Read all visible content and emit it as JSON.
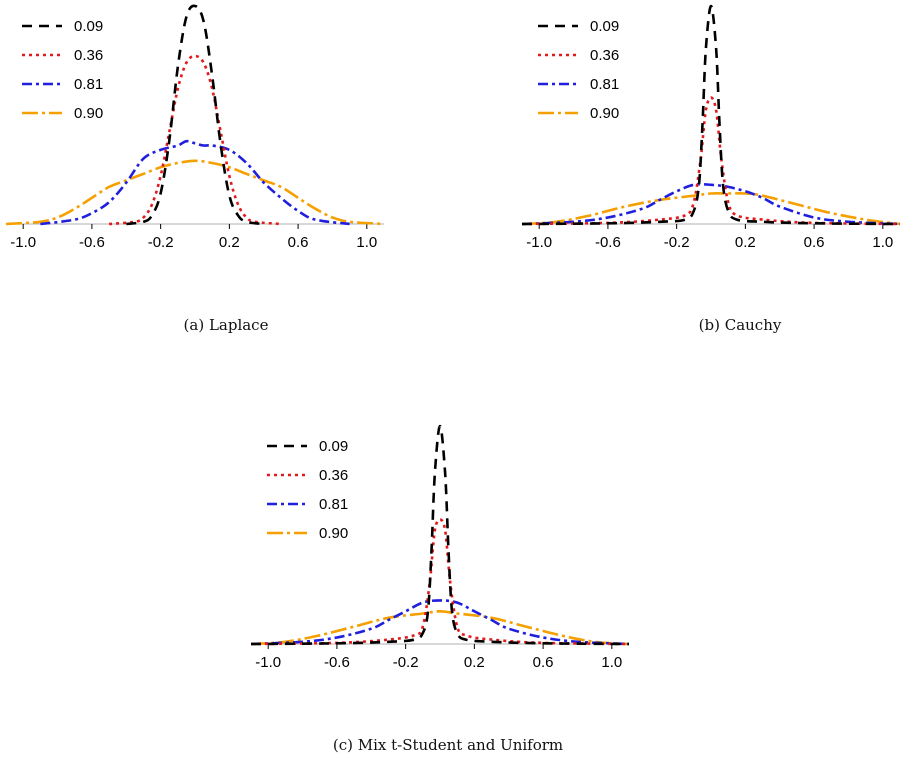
{
  "colors": {
    "black": "#000000",
    "red": "#e31a1c",
    "blue": "#1f1fdd",
    "orange": "#f5a000",
    "axis": "#b0b0b0"
  },
  "captions": {
    "a": "(a) Laplace",
    "b": "(b) Cauchy",
    "c": "(c) Mix t-Student and Uniform"
  },
  "chart_data": [
    {
      "type": "line",
      "caption": "(a) Laplace",
      "xlim": [
        -1.1,
        1.1
      ],
      "ylim": [
        0,
        1
      ],
      "x_ticks": [
        -1.0,
        -0.6,
        -0.2,
        0.2,
        0.6,
        1.0
      ],
      "x_tick_labels": [
        "-1.0",
        "-0.6",
        "-0.2",
        "0.2",
        "0.6",
        "1.0"
      ],
      "legend_position": "top-left",
      "series": [
        {
          "name": "0.09",
          "color": "#000000",
          "dash": "10,7",
          "x": [
            -0.4,
            -0.3,
            -0.25,
            -0.2,
            -0.15,
            -0.1,
            -0.05,
            0.0,
            0.05,
            0.1,
            0.15,
            0.2,
            0.25,
            0.3,
            0.4
          ],
          "y": [
            0,
            0.01,
            0.04,
            0.14,
            0.38,
            0.72,
            0.95,
            1.0,
            0.93,
            0.68,
            0.36,
            0.13,
            0.04,
            0.01,
            0
          ]
        },
        {
          "name": "0.36",
          "color": "#e31a1c",
          "dash": "3,4",
          "x": [
            -0.5,
            -0.35,
            -0.3,
            -0.25,
            -0.2,
            -0.15,
            -0.1,
            -0.05,
            0.0,
            0.05,
            0.1,
            0.15,
            0.2,
            0.25,
            0.3,
            0.35,
            0.5
          ],
          "y": [
            0,
            0.01,
            0.03,
            0.09,
            0.22,
            0.42,
            0.62,
            0.74,
            0.77,
            0.74,
            0.62,
            0.42,
            0.22,
            0.09,
            0.03,
            0.01,
            0
          ]
        },
        {
          "name": "0.81",
          "color": "#1f1fdd",
          "dash": "10,4,3,4",
          "x": [
            -0.9,
            -0.7,
            -0.6,
            -0.5,
            -0.4,
            -0.3,
            -0.2,
            -0.1,
            -0.05,
            0.0,
            0.05,
            0.1,
            0.2,
            0.3,
            0.4,
            0.5,
            0.6,
            0.7,
            0.9
          ],
          "y": [
            0,
            0.02,
            0.05,
            0.1,
            0.19,
            0.3,
            0.34,
            0.36,
            0.38,
            0.37,
            0.36,
            0.36,
            0.34,
            0.28,
            0.19,
            0.12,
            0.06,
            0.02,
            0
          ]
        },
        {
          "name": "0.90",
          "color": "#f5a000",
          "dash": "16,4,3,4",
          "x": [
            -1.1,
            -0.9,
            -0.8,
            -0.7,
            -0.6,
            -0.5,
            -0.4,
            -0.3,
            -0.2,
            -0.1,
            0.0,
            0.1,
            0.2,
            0.3,
            0.4,
            0.5,
            0.6,
            0.7,
            0.8,
            0.9,
            1.1
          ],
          "y": [
            0,
            0.01,
            0.03,
            0.07,
            0.12,
            0.17,
            0.2,
            0.23,
            0.26,
            0.28,
            0.29,
            0.28,
            0.26,
            0.23,
            0.2,
            0.17,
            0.12,
            0.07,
            0.03,
            0.01,
            0
          ]
        }
      ]
    },
    {
      "type": "line",
      "caption": "(b) Cauchy",
      "xlim": [
        -1.1,
        1.1
      ],
      "ylim": [
        0,
        1
      ],
      "x_ticks": [
        -1.0,
        -0.6,
        -0.2,
        0.2,
        0.6,
        1.0
      ],
      "x_tick_labels": [
        "-1.0",
        "-0.6",
        "-0.2",
        "0.2",
        "0.6",
        "1.0"
      ],
      "legend_position": "top-left",
      "series": [
        {
          "name": "0.09",
          "color": "#000000",
          "dash": "10,7",
          "x": [
            -1.1,
            -0.6,
            -0.3,
            -0.15,
            -0.1,
            -0.07,
            -0.05,
            -0.03,
            0.0,
            0.03,
            0.05,
            0.07,
            0.1,
            0.15,
            0.3,
            0.6,
            1.1
          ],
          "y": [
            0,
            0.003,
            0.01,
            0.02,
            0.06,
            0.18,
            0.45,
            0.8,
            1.0,
            0.8,
            0.45,
            0.18,
            0.06,
            0.02,
            0.01,
            0.003,
            0
          ]
        },
        {
          "name": "0.36",
          "color": "#e31a1c",
          "dash": "3,4",
          "x": [
            -1.1,
            -0.6,
            -0.3,
            -0.15,
            -0.1,
            -0.06,
            -0.03,
            0.0,
            0.03,
            0.06,
            0.1,
            0.15,
            0.3,
            0.6,
            1.1
          ],
          "y": [
            0,
            0.005,
            0.02,
            0.04,
            0.1,
            0.3,
            0.52,
            0.58,
            0.52,
            0.3,
            0.1,
            0.04,
            0.02,
            0.005,
            0
          ]
        },
        {
          "name": "0.81",
          "color": "#1f1fdd",
          "dash": "10,4,3,4",
          "x": [
            -1.1,
            -0.8,
            -0.6,
            -0.4,
            -0.3,
            -0.2,
            -0.1,
            0.0,
            0.1,
            0.2,
            0.3,
            0.4,
            0.6,
            0.8,
            1.1
          ],
          "y": [
            0,
            0.01,
            0.03,
            0.07,
            0.11,
            0.15,
            0.18,
            0.18,
            0.17,
            0.15,
            0.12,
            0.08,
            0.03,
            0.01,
            0
          ]
        },
        {
          "name": "0.90",
          "color": "#f5a000",
          "dash": "16,4,3,4",
          "x": [
            -1.1,
            -0.9,
            -0.7,
            -0.5,
            -0.3,
            -0.1,
            0.0,
            0.1,
            0.2,
            0.3,
            0.5,
            0.7,
            0.9,
            1.1
          ],
          "y": [
            0,
            0.01,
            0.04,
            0.08,
            0.11,
            0.13,
            0.14,
            0.14,
            0.14,
            0.13,
            0.09,
            0.05,
            0.02,
            0
          ]
        }
      ]
    },
    {
      "type": "line",
      "caption": "(c) Mix t-Student and Uniform",
      "xlim": [
        -1.1,
        1.1
      ],
      "ylim": [
        0,
        1
      ],
      "x_ticks": [
        -1.0,
        -0.6,
        -0.2,
        0.2,
        0.6,
        1.0
      ],
      "x_tick_labels": [
        "-1.0",
        "-0.6",
        "-0.2",
        "0.2",
        "0.6",
        "1.0"
      ],
      "legend_position": "top-left",
      "series": [
        {
          "name": "0.09",
          "color": "#000000",
          "dash": "10,7",
          "x": [
            -1.1,
            -0.6,
            -0.3,
            -0.15,
            -0.1,
            -0.07,
            -0.05,
            -0.03,
            0.0,
            0.03,
            0.05,
            0.07,
            0.1,
            0.15,
            0.3,
            0.6,
            1.1
          ],
          "y": [
            0,
            0.003,
            0.01,
            0.02,
            0.05,
            0.15,
            0.42,
            0.78,
            1.0,
            0.78,
            0.42,
            0.15,
            0.05,
            0.02,
            0.01,
            0.003,
            0
          ]
        },
        {
          "name": "0.36",
          "color": "#e31a1c",
          "dash": "3,4",
          "x": [
            -1.1,
            -0.6,
            -0.3,
            -0.15,
            -0.1,
            -0.06,
            -0.03,
            0.0,
            0.03,
            0.06,
            0.1,
            0.15,
            0.3,
            0.6,
            1.1
          ],
          "y": [
            0,
            0.005,
            0.02,
            0.04,
            0.08,
            0.28,
            0.52,
            0.57,
            0.52,
            0.28,
            0.08,
            0.04,
            0.02,
            0.005,
            0
          ]
        },
        {
          "name": "0.81",
          "color": "#1f1fdd",
          "dash": "10,4,3,4",
          "x": [
            -1.1,
            -0.8,
            -0.6,
            -0.4,
            -0.3,
            -0.2,
            -0.1,
            0.0,
            0.1,
            0.2,
            0.3,
            0.4,
            0.6,
            0.8,
            1.1
          ],
          "y": [
            0,
            0.01,
            0.03,
            0.07,
            0.11,
            0.15,
            0.19,
            0.2,
            0.19,
            0.15,
            0.11,
            0.07,
            0.03,
            0.01,
            0
          ]
        },
        {
          "name": "0.90",
          "color": "#f5a000",
          "dash": "16,4,3,4",
          "x": [
            -1.1,
            -0.9,
            -0.7,
            -0.5,
            -0.3,
            -0.1,
            0.0,
            0.1,
            0.3,
            0.5,
            0.7,
            0.9,
            1.1
          ],
          "y": [
            0,
            0.01,
            0.04,
            0.08,
            0.12,
            0.14,
            0.15,
            0.14,
            0.12,
            0.08,
            0.04,
            0.01,
            0
          ]
        }
      ]
    }
  ]
}
